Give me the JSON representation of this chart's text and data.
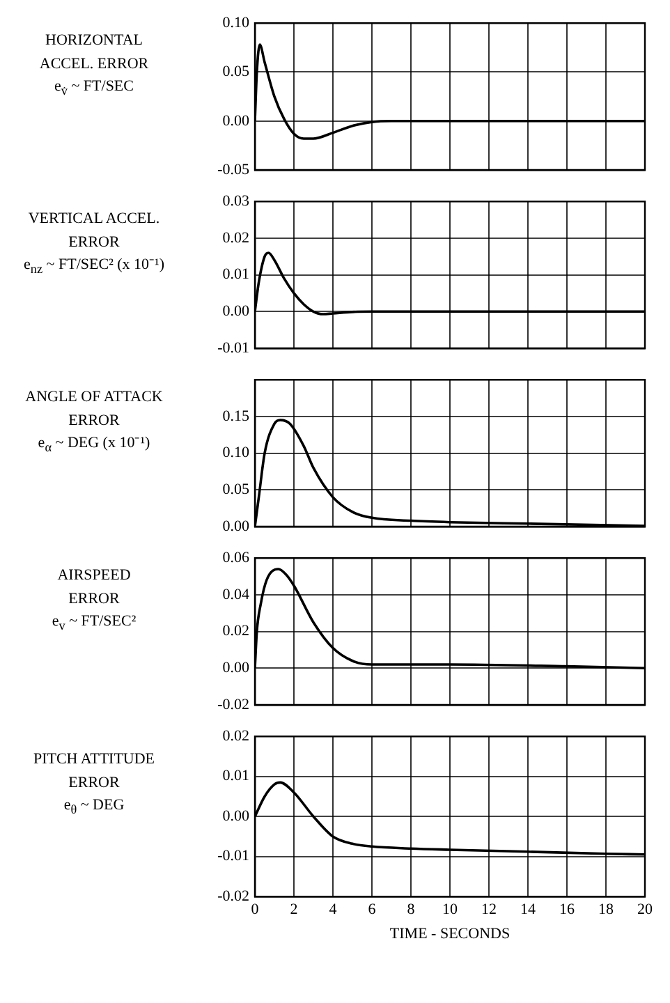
{
  "chart_data": [
    {
      "type": "line",
      "ylabel": "HORIZONTAL\nACCEL. ERROR\ne$_{v̇}$ ~ FT/SEC",
      "xlim": [
        0,
        20
      ],
      "xticks": [
        0,
        2,
        4,
        6,
        8,
        10,
        12,
        14,
        16,
        18,
        20
      ],
      "ylim": [
        -0.05,
        0.1
      ],
      "yticks": [
        {
          "value": -0.05,
          "label": "-0.05"
        },
        {
          "value": 0,
          "label": "0.00"
        },
        {
          "value": 0.05,
          "label": "0.05"
        },
        {
          "value": 0.1,
          "label": "0.10"
        }
      ],
      "grid": true,
      "legend": false,
      "marker": "none",
      "line_style": "solid",
      "tick_labels": "y",
      "series": [
        {
          "color": "#000000",
          "x": [
            0,
            0.1,
            0.25,
            0.5,
            1,
            1.5,
            2,
            2.5,
            3,
            4,
            5,
            6,
            7,
            20
          ],
          "values": [
            0,
            0.05,
            0.078,
            0.06,
            0.025,
            0.002,
            -0.013,
            -0.018,
            -0.018,
            -0.012,
            -0.005,
            -0.001,
            0,
            0
          ]
        }
      ]
    },
    {
      "type": "line",
      "ylabel": "VERTICAL ACCEL.\nERROR\ne$_{nz}$ ~ FT/SEC² (x 10⁻¹)",
      "xlim": [
        0,
        20
      ],
      "xticks": [
        0,
        2,
        4,
        6,
        8,
        10,
        12,
        14,
        16,
        18,
        20
      ],
      "ylim": [
        -0.01,
        0.03
      ],
      "yticks": [
        {
          "value": -0.01,
          "label": "-0.01"
        },
        {
          "value": 0,
          "label": "0.00"
        },
        {
          "value": 0.01,
          "label": "0.01"
        },
        {
          "value": 0.02,
          "label": "0.02"
        },
        {
          "value": 0.03,
          "label": "0.03"
        }
      ],
      "grid": true,
      "legend": false,
      "marker": "none",
      "line_style": "solid",
      "tick_labels": "y",
      "series": [
        {
          "color": "#000000",
          "x": [
            0,
            0.2,
            0.5,
            0.7,
            1,
            1.5,
            2,
            2.5,
            3,
            3.5,
            4,
            5,
            6,
            20
          ],
          "values": [
            0,
            0.008,
            0.015,
            0.016,
            0.014,
            0.009,
            0.005,
            0.002,
            0,
            -0.0007,
            -0.0005,
            -0.0001,
            0,
            0
          ]
        }
      ]
    },
    {
      "type": "line",
      "ylabel": "ANGLE OF ATTACK\nERROR\ne$_{α}$ ~ DEG (x 10⁻¹)",
      "xlim": [
        0,
        20
      ],
      "xticks": [
        0,
        2,
        4,
        6,
        8,
        10,
        12,
        14,
        16,
        18,
        20
      ],
      "ylim": [
        0,
        0.2
      ],
      "yticks": [
        {
          "value": 0,
          "label": "0.00"
        },
        {
          "value": 0.05,
          "label": "0.05"
        },
        {
          "value": 0.1,
          "label": "0.10"
        },
        {
          "value": 0.15,
          "label": "0.15"
        },
        {
          "value": 0.2,
          "label": null
        }
      ],
      "grid": true,
      "legend": false,
      "marker": "none",
      "line_style": "solid",
      "tick_labels": "y",
      "series": [
        {
          "color": "#000000",
          "x": [
            0,
            0.2,
            0.5,
            1,
            1.3,
            1.8,
            2.5,
            3,
            4,
            5,
            6,
            8,
            10,
            14,
            20
          ],
          "values": [
            0,
            0.04,
            0.1,
            0.14,
            0.145,
            0.14,
            0.11,
            0.08,
            0.04,
            0.02,
            0.012,
            0.008,
            0.006,
            0.004,
            0.001
          ]
        }
      ]
    },
    {
      "type": "line",
      "ylabel": "AIRSPEED\nERROR\ne$_{v}$ ~ FT/SEC²",
      "xlim": [
        0,
        20
      ],
      "xticks": [
        0,
        2,
        4,
        6,
        8,
        10,
        12,
        14,
        16,
        18,
        20
      ],
      "ylim": [
        -0.02,
        0.06
      ],
      "yticks": [
        {
          "value": -0.02,
          "label": "-0.02"
        },
        {
          "value": 0,
          "label": "0.00"
        },
        {
          "value": 0.02,
          "label": "0.02"
        },
        {
          "value": 0.04,
          "label": "0.04"
        },
        {
          "value": 0.06,
          "label": "0.06"
        }
      ],
      "grid": true,
      "legend": false,
      "marker": "none",
      "line_style": "solid",
      "tick_labels": "y",
      "series": [
        {
          "color": "#000000",
          "x": [
            0,
            0.1,
            0.3,
            0.6,
            1.2,
            1.6,
            2,
            3,
            4,
            5,
            6,
            10,
            16,
            20
          ],
          "values": [
            0,
            0.02,
            0.035,
            0.048,
            0.054,
            0.051,
            0.045,
            0.025,
            0.011,
            0.004,
            0.002,
            0.002,
            0.001,
            0
          ]
        }
      ]
    },
    {
      "type": "line",
      "ylabel": "PITCH ATTITUDE\nERROR\ne$_{θ}$ ~ DEG",
      "xlabel": "TIME - SECONDS",
      "xlim": [
        0,
        20
      ],
      "xticks": [
        0,
        2,
        4,
        6,
        8,
        10,
        12,
        14,
        16,
        18,
        20
      ],
      "ylim": [
        -0.02,
        0.02
      ],
      "yticks": [
        {
          "value": -0.02,
          "label": "-0.02"
        },
        {
          "value": -0.01,
          "label": "-0.01"
        },
        {
          "value": 0,
          "label": "0.00"
        },
        {
          "value": 0.01,
          "label": "0.01"
        },
        {
          "value": 0.02,
          "label": "0.02"
        }
      ],
      "grid": true,
      "legend": false,
      "marker": "none",
      "line_style": "solid",
      "series": [
        {
          "color": "#000000",
          "x": [
            0,
            0.5,
            1,
            1.3,
            2,
            3,
            4,
            5,
            6,
            8,
            10,
            14,
            18,
            20
          ],
          "values": [
            0,
            0.005,
            0.008,
            0.0085,
            0.006,
            0,
            -0.005,
            -0.0068,
            -0.0075,
            -0.008,
            -0.0083,
            -0.0088,
            -0.0093,
            -0.0095
          ]
        }
      ]
    }
  ]
}
